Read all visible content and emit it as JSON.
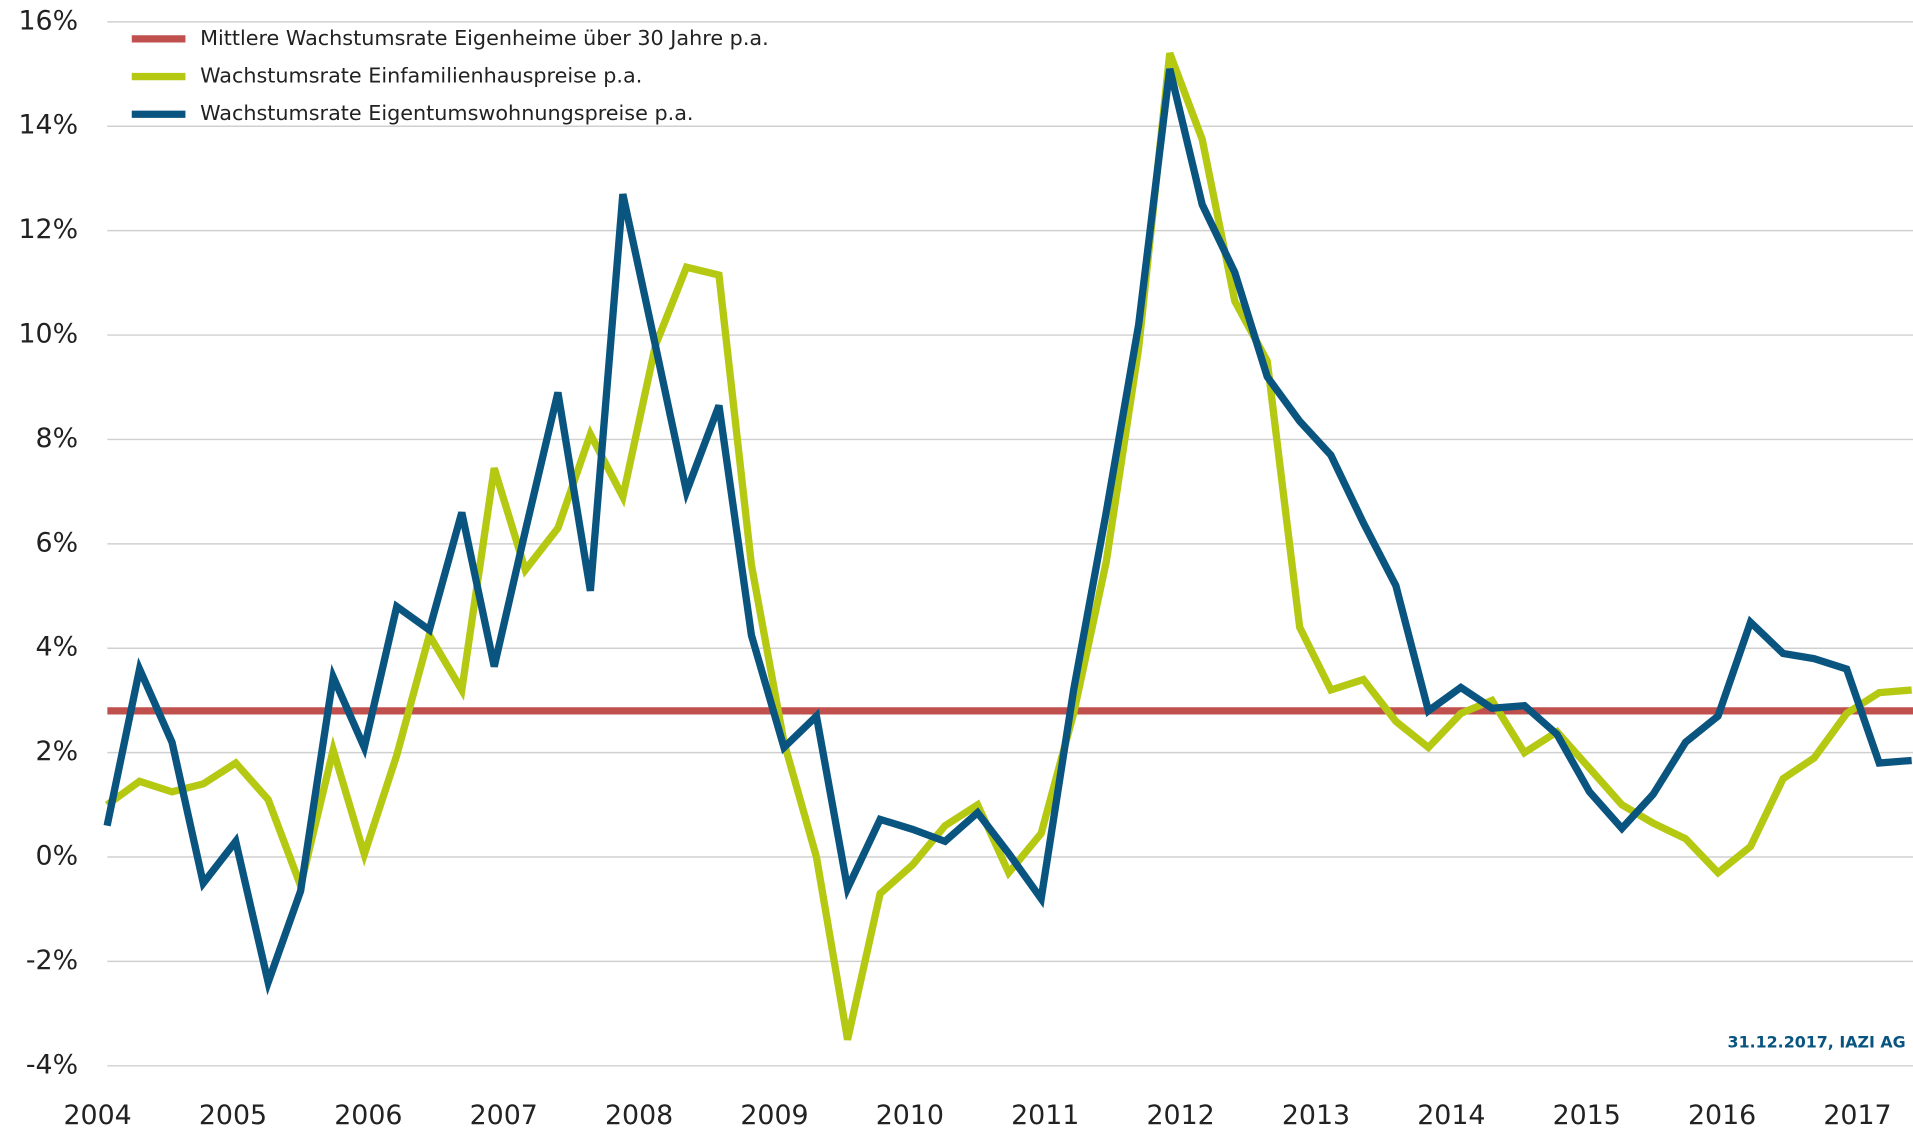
{
  "chart_data": {
    "type": "line",
    "legend": "top-left",
    "grid": true,
    "annotation": "31.12.2017, IAZI AG",
    "reference_line": {
      "name": "Mittlere Wachstumsrate Eigenheime über 30 Jahre p.a.",
      "color": "#c0504d",
      "value": 2.8
    },
    "x": [
      2004.07,
      2004.31,
      2004.55,
      2004.78,
      2005.02,
      2005.26,
      2005.5,
      2005.74,
      2005.97,
      2006.21,
      2006.45,
      2006.69,
      2006.93,
      2007.16,
      2007.4,
      2007.64,
      2007.88,
      2008.12,
      2008.35,
      2008.59,
      2008.83,
      2009.07,
      2009.31,
      2009.54,
      2009.78,
      2010.02,
      2010.26,
      2010.5,
      2010.73,
      2010.97,
      2011.21,
      2011.45,
      2011.69,
      2011.92,
      2012.16,
      2012.4,
      2012.64,
      2012.88,
      2013.11,
      2013.35,
      2013.59,
      2013.83,
      2014.07,
      2014.3,
      2014.54,
      2014.78,
      2015.02,
      2015.26,
      2015.49,
      2015.73,
      2015.97,
      2016.21,
      2016.45,
      2016.68,
      2016.92,
      2017.16,
      2017.4
    ],
    "series": [
      {
        "name": "Wachstumsrate Einfamilienhauspreise p.a.",
        "color": "#b5c812",
        "values": [
          1.0,
          1.45,
          1.25,
          1.4,
          1.8,
          1.1,
          -0.55,
          2.05,
          0.05,
          1.95,
          4.25,
          3.2,
          7.45,
          5.5,
          6.3,
          8.1,
          6.9,
          9.8,
          11.3,
          11.15,
          5.6,
          2.2,
          0.0,
          -3.5,
          -0.7,
          -0.15,
          0.6,
          1.0,
          -0.3,
          0.45,
          2.75,
          5.65,
          9.75,
          15.4,
          13.75,
          10.65,
          9.5,
          4.4,
          3.2,
          3.4,
          2.6,
          2.1,
          2.75,
          3.0,
          2.0,
          2.4,
          1.7,
          1.0,
          0.65,
          0.35,
          -0.3,
          0.2,
          1.5,
          1.9,
          2.75,
          3.15,
          3.2
        ]
      },
      {
        "name": "Wachstumsrate Eigentumswohnungspreise p.a.",
        "color": "#0a5580",
        "values": [
          0.6,
          3.6,
          2.2,
          -0.5,
          0.3,
          -2.4,
          -0.65,
          3.45,
          2.1,
          4.8,
          4.35,
          6.6,
          3.65,
          6.25,
          8.9,
          5.1,
          12.7,
          9.8,
          7.0,
          8.65,
          4.25,
          2.1,
          2.7,
          -0.6,
          0.72,
          0.53,
          0.3,
          0.85,
          0.07,
          -0.8,
          3.2,
          6.6,
          10.2,
          15.1,
          12.5,
          11.2,
          9.2,
          8.35,
          7.7,
          6.4,
          5.2,
          2.8,
          3.25,
          2.85,
          2.9,
          2.35,
          1.25,
          0.55,
          1.2,
          2.2,
          2.7,
          4.5,
          3.9,
          3.8,
          3.6,
          1.8,
          1.85
        ]
      }
    ],
    "xlim": [
      2004,
      2017.41
    ],
    "xticks": [
      2004,
      2005,
      2006,
      2007,
      2008,
      2009,
      2010,
      2011,
      2012,
      2013,
      2014,
      2015,
      2016,
      2017
    ],
    "ylim": [
      -4.6,
      16
    ],
    "yticks": [
      {
        "value": -4,
        "label": "-4%"
      },
      {
        "value": -2,
        "label": "-2%"
      },
      {
        "value": 0,
        "label": "0%"
      },
      {
        "value": 2,
        "label": "2%"
      },
      {
        "value": 4,
        "label": "4%"
      },
      {
        "value": 6,
        "label": "6%"
      },
      {
        "value": 8,
        "label": "8%"
      },
      {
        "value": 10,
        "label": "10%"
      },
      {
        "value": 12,
        "label": "12%"
      },
      {
        "value": 14,
        "label": "14%"
      },
      {
        "value": 16,
        "label": "16%"
      }
    ]
  }
}
